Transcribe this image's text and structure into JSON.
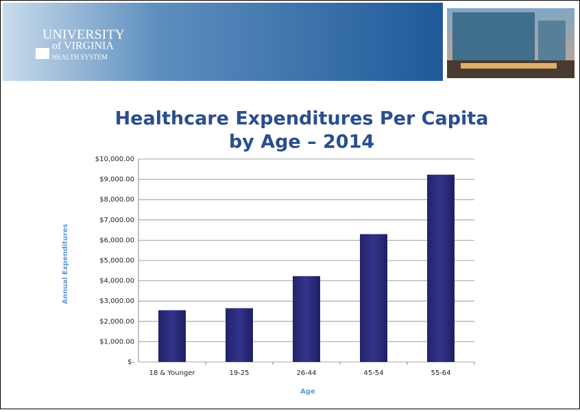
{
  "logo": [
    "UNIVERSITY",
    "of VIRGINIA",
    "HEALTH SYSTEM"
  ],
  "chart_data": {
    "type": "bar",
    "title": [
      "Healthcare Expenditures Per Capita",
      "by Age – 2014"
    ],
    "x_label": "Age",
    "y_label": "Annual Expenditures",
    "categories": [
      "18 & Younger",
      "19-25",
      "26-44",
      "45-54",
      "55-64"
    ],
    "values": [
      2550,
      2650,
      4230,
      6300,
      9230
    ],
    "color": "#2c2c7c",
    "ylim": [
      0,
      10000
    ],
    "yticks": [
      {
        "value": 0,
        "label": "$-"
      },
      {
        "value": 1000,
        "label": "$1,000.00"
      },
      {
        "value": 2000,
        "label": "$2,000.00"
      },
      {
        "value": 3000,
        "label": "$3,000.00"
      },
      {
        "value": 4000,
        "label": "$4,000.00"
      },
      {
        "value": 5000,
        "label": "$5,000.00"
      },
      {
        "value": 6000,
        "label": "$6,000.00"
      },
      {
        "value": 7000,
        "label": "$7,000.00"
      },
      {
        "value": 8000,
        "label": "$8,000.00"
      },
      {
        "value": 9000,
        "label": "$9,000.00"
      },
      {
        "value": 10000,
        "label": "$10,000.00"
      }
    ],
    "grid": true
  }
}
